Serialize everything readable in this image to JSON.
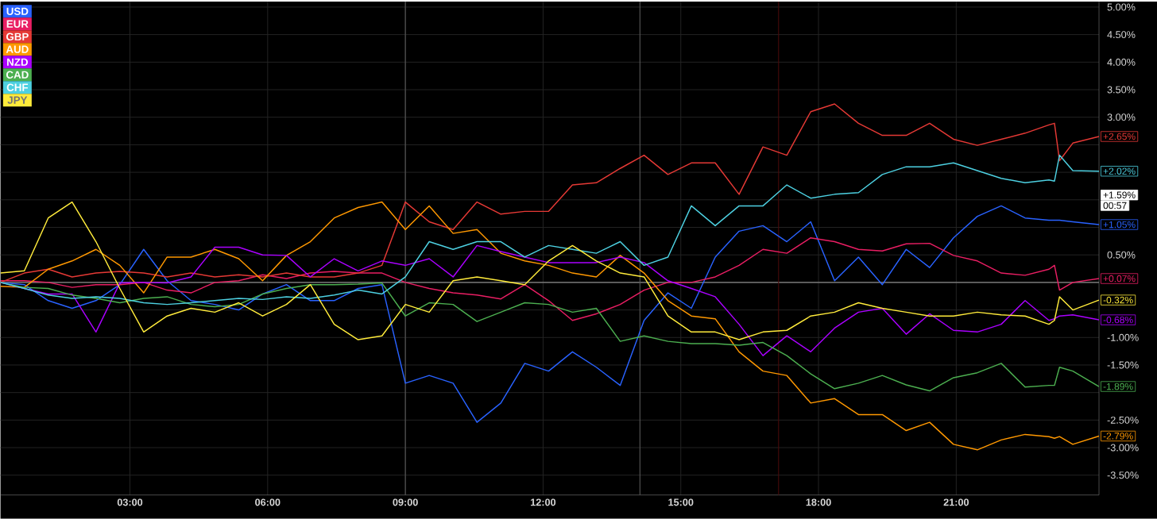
{
  "chart_data": {
    "type": "line",
    "x": [
      0.18,
      0.7,
      1.22,
      1.74,
      2.26,
      2.78,
      3.3,
      3.81,
      4.33,
      4.85,
      5.37,
      5.89,
      6.41,
      6.93,
      7.45,
      7.97,
      8.49,
      9.0,
      9.52,
      10.04,
      10.56,
      11.08,
      11.6,
      12.12,
      12.64,
      13.16,
      13.68,
      14.2,
      14.72,
      15.23,
      15.75,
      16.27,
      16.79,
      17.31,
      17.83,
      18.35,
      18.87,
      19.39,
      19.91,
      20.42,
      20.94,
      21.46,
      21.98,
      22.5,
      23.02,
      23.14,
      23.25,
      23.54,
      24.11
    ],
    "series": [
      {
        "name": "USD",
        "color": "#2962ff",
        "values": [
          0.0,
          -0.04,
          -0.33,
          -0.47,
          -0.33,
          -0.04,
          0.6,
          0.03,
          -0.33,
          -0.4,
          -0.5,
          -0.21,
          -0.04,
          -0.33,
          -0.33,
          -0.11,
          -0.04,
          -1.83,
          -1.69,
          -1.83,
          -2.54,
          -2.19,
          -1.47,
          -1.61,
          -1.26,
          -1.54,
          -1.87,
          -0.69,
          -0.19,
          -0.47,
          0.46,
          0.93,
          1.03,
          0.74,
          1.1,
          0.03,
          0.46,
          -0.04,
          0.6,
          0.27,
          0.81,
          1.2,
          1.39,
          1.17,
          1.13,
          1.13,
          1.13,
          1.1,
          1.05
        ],
        "value_labels": [
          null,
          null,
          null,
          null,
          null,
          null,
          null,
          null,
          null,
          null,
          null,
          null,
          null,
          null,
          null,
          null,
          null,
          null,
          null,
          null,
          null,
          null,
          null,
          null,
          null,
          null,
          null,
          null,
          null,
          null,
          null,
          null,
          null,
          null,
          null,
          null,
          null,
          null,
          null,
          null,
          null,
          null,
          null,
          null,
          null,
          null,
          null,
          null,
          "+1.05%"
        ]
      },
      {
        "name": "EUR",
        "color": "#e91e63",
        "values": [
          0.03,
          0.03,
          0.0,
          -0.09,
          -0.04,
          -0.04,
          0.0,
          -0.14,
          -0.19,
          0.0,
          0.03,
          0.14,
          0.07,
          0.17,
          0.2,
          0.17,
          0.17,
          0.0,
          -0.11,
          -0.19,
          -0.23,
          -0.3,
          -0.04,
          -0.33,
          -0.69,
          -0.57,
          -0.4,
          -0.14,
          0.0,
          0.0,
          0.1,
          0.31,
          0.6,
          0.53,
          0.81,
          0.74,
          0.6,
          0.57,
          0.7,
          0.71,
          0.49,
          0.39,
          0.17,
          0.13,
          0.24,
          0.31,
          -0.14,
          0.0,
          0.07
        ],
        "value_labels": [
          null,
          null,
          null,
          null,
          null,
          null,
          null,
          null,
          null,
          null,
          null,
          null,
          null,
          null,
          null,
          null,
          null,
          null,
          null,
          null,
          null,
          null,
          null,
          null,
          null,
          null,
          null,
          null,
          null,
          null,
          null,
          null,
          null,
          null,
          null,
          null,
          null,
          null,
          null,
          null,
          null,
          null,
          null,
          null,
          null,
          null,
          null,
          null,
          "+0.07%"
        ]
      },
      {
        "name": "GBP",
        "color": "#e53935",
        "values": [
          0.0,
          0.17,
          0.24,
          0.1,
          0.17,
          0.2,
          0.17,
          0.1,
          0.17,
          0.1,
          0.14,
          0.1,
          0.17,
          0.1,
          0.1,
          0.17,
          0.31,
          1.46,
          1.1,
          0.96,
          1.46,
          1.24,
          1.29,
          1.29,
          1.77,
          1.81,
          2.07,
          2.31,
          1.96,
          2.17,
          2.17,
          1.6,
          2.46,
          2.31,
          3.1,
          3.24,
          2.89,
          2.67,
          2.67,
          2.89,
          2.6,
          2.49,
          2.6,
          2.71,
          2.86,
          2.89,
          2.21,
          2.53,
          2.65
        ],
        "value_labels": [
          null,
          null,
          null,
          null,
          null,
          null,
          null,
          null,
          null,
          null,
          null,
          null,
          null,
          null,
          null,
          null,
          null,
          null,
          null,
          null,
          null,
          null,
          null,
          null,
          null,
          null,
          null,
          null,
          null,
          null,
          null,
          null,
          null,
          null,
          null,
          null,
          null,
          null,
          null,
          null,
          null,
          null,
          null,
          null,
          null,
          null,
          null,
          null,
          "+2.65%"
        ]
      },
      {
        "name": "AUD",
        "color": "#ff9800",
        "values": [
          -0.07,
          -0.09,
          0.24,
          0.39,
          0.6,
          0.31,
          -0.19,
          0.46,
          0.46,
          0.6,
          0.43,
          0.03,
          0.49,
          0.74,
          1.17,
          1.36,
          1.46,
          0.96,
          1.39,
          0.89,
          0.96,
          0.53,
          0.39,
          0.31,
          0.17,
          0.1,
          0.49,
          0.17,
          -0.33,
          -0.61,
          -0.66,
          -1.26,
          -1.61,
          -1.69,
          -2.19,
          -2.11,
          -2.4,
          -2.4,
          -2.69,
          -2.54,
          -2.94,
          -3.04,
          -2.86,
          -2.76,
          -2.8,
          -2.83,
          -2.8,
          -2.94,
          -2.79
        ],
        "value_labels": [
          null,
          null,
          null,
          null,
          null,
          null,
          null,
          null,
          null,
          null,
          null,
          null,
          null,
          null,
          null,
          null,
          null,
          null,
          null,
          null,
          null,
          null,
          null,
          null,
          null,
          null,
          null,
          null,
          null,
          null,
          null,
          null,
          null,
          null,
          null,
          null,
          null,
          null,
          null,
          null,
          null,
          null,
          null,
          null,
          null,
          null,
          null,
          null,
          "-2.79%"
        ]
      },
      {
        "name": "NZD",
        "color": "#aa00ff",
        "values": [
          0.0,
          -0.11,
          -0.21,
          -0.21,
          -0.9,
          -0.01,
          0.0,
          -0.01,
          0.1,
          0.64,
          0.64,
          0.5,
          0.49,
          0.1,
          0.43,
          0.21,
          0.39,
          0.31,
          0.43,
          0.1,
          0.67,
          0.56,
          0.46,
          0.36,
          0.36,
          0.36,
          0.46,
          0.36,
          0.03,
          -0.11,
          -0.26,
          -0.76,
          -1.33,
          -0.97,
          -1.26,
          -0.83,
          -0.54,
          -0.47,
          -0.94,
          -0.57,
          -0.87,
          -0.9,
          -0.76,
          -0.33,
          -0.69,
          -0.66,
          -0.61,
          -0.59,
          -0.68
        ],
        "value_labels": [
          null,
          null,
          null,
          null,
          null,
          null,
          null,
          null,
          null,
          null,
          null,
          null,
          null,
          null,
          null,
          null,
          null,
          null,
          null,
          null,
          null,
          null,
          null,
          null,
          null,
          null,
          null,
          null,
          null,
          null,
          null,
          null,
          null,
          null,
          null,
          null,
          null,
          null,
          null,
          null,
          null,
          null,
          null,
          null,
          null,
          null,
          null,
          null,
          "-0.68%"
        ]
      },
      {
        "name": "CAD",
        "color": "#4caf50",
        "values": [
          0.0,
          -0.09,
          -0.11,
          -0.23,
          -0.29,
          -0.37,
          -0.29,
          -0.26,
          -0.4,
          -0.44,
          -0.4,
          -0.21,
          -0.11,
          -0.04,
          -0.04,
          -0.03,
          -0.01,
          -0.61,
          -0.37,
          -0.4,
          -0.71,
          -0.54,
          -0.37,
          -0.4,
          -0.54,
          -0.47,
          -1.07,
          -0.97,
          -1.07,
          -1.11,
          -1.11,
          -1.14,
          -1.09,
          -1.33,
          -1.66,
          -1.93,
          -1.83,
          -1.69,
          -1.86,
          -1.97,
          -1.73,
          -1.64,
          -1.47,
          -1.9,
          -1.87,
          -1.87,
          -1.54,
          -1.61,
          -1.89
        ],
        "value_labels": [
          null,
          null,
          null,
          null,
          null,
          null,
          null,
          null,
          null,
          null,
          null,
          null,
          null,
          null,
          null,
          null,
          null,
          null,
          null,
          null,
          null,
          null,
          null,
          null,
          null,
          null,
          null,
          null,
          null,
          null,
          null,
          null,
          null,
          null,
          null,
          null,
          null,
          null,
          null,
          null,
          null,
          null,
          null,
          null,
          null,
          null,
          null,
          null,
          "-1.89%"
        ]
      },
      {
        "name": "CHF",
        "color": "#4dd0e1",
        "values": [
          0.0,
          -0.11,
          -0.23,
          -0.29,
          -0.26,
          -0.29,
          -0.37,
          -0.4,
          -0.37,
          -0.33,
          -0.29,
          -0.31,
          -0.26,
          -0.29,
          -0.23,
          -0.14,
          -0.21,
          0.1,
          0.74,
          0.6,
          0.74,
          0.74,
          0.46,
          0.67,
          0.6,
          0.53,
          0.74,
          0.31,
          0.46,
          1.39,
          1.03,
          1.39,
          1.39,
          1.77,
          1.53,
          1.6,
          1.63,
          1.96,
          2.1,
          2.1,
          2.17,
          2.03,
          1.89,
          1.81,
          1.86,
          1.84,
          2.31,
          2.03,
          2.02
        ],
        "value_labels": [
          null,
          null,
          null,
          null,
          null,
          null,
          null,
          null,
          null,
          null,
          null,
          null,
          null,
          null,
          null,
          null,
          null,
          null,
          null,
          null,
          null,
          null,
          null,
          null,
          null,
          null,
          null,
          null,
          null,
          null,
          null,
          null,
          null,
          null,
          null,
          null,
          null,
          null,
          null,
          null,
          null,
          null,
          null,
          null,
          null,
          null,
          null,
          null,
          "+2.02%"
        ]
      },
      {
        "name": "JPY",
        "color": "#ffeb3b",
        "values": [
          0.17,
          0.21,
          1.17,
          1.46,
          0.74,
          -0.11,
          -0.9,
          -0.61,
          -0.47,
          -0.54,
          -0.37,
          -0.61,
          -0.4,
          -0.04,
          -0.76,
          -1.04,
          -0.97,
          -0.4,
          -0.54,
          0.03,
          0.1,
          0.03,
          -0.04,
          0.39,
          0.67,
          0.39,
          0.17,
          0.1,
          -0.61,
          -0.9,
          -0.9,
          -1.04,
          -0.9,
          -0.87,
          -0.61,
          -0.54,
          -0.37,
          -0.47,
          -0.54,
          -0.61,
          -0.61,
          -0.54,
          -0.59,
          -0.61,
          -0.76,
          -0.69,
          -0.26,
          -0.5,
          -0.32
        ],
        "value_labels": [
          null,
          null,
          null,
          null,
          null,
          null,
          null,
          null,
          null,
          null,
          null,
          null,
          null,
          null,
          null,
          null,
          null,
          null,
          null,
          null,
          null,
          null,
          null,
          null,
          null,
          null,
          null,
          null,
          null,
          null,
          null,
          null,
          null,
          null,
          null,
          null,
          null,
          null,
          null,
          null,
          null,
          null,
          null,
          null,
          null,
          null,
          null,
          null,
          "-0.32%"
        ]
      }
    ],
    "xlim": [
      0.18,
      24.11
    ],
    "ylim": [
      -3.86,
      5.1
    ],
    "xticks": [
      {
        "value": 3,
        "label": "03:00"
      },
      {
        "value": 6,
        "label": "06:00"
      },
      {
        "value": 9,
        "label": "09:00"
      },
      {
        "value": 12,
        "label": "12:00"
      },
      {
        "value": 15,
        "label": "15:00"
      },
      {
        "value": 18,
        "label": "18:00"
      },
      {
        "value": 21,
        "label": "21:00"
      }
    ],
    "yticks": [
      {
        "value": 5,
        "label": "5.00%"
      },
      {
        "value": 4.5,
        "label": "4.50%"
      },
      {
        "value": 4,
        "label": "4.00%"
      },
      {
        "value": 3.5,
        "label": "3.50%"
      },
      {
        "value": 3,
        "label": "3.00%"
      },
      {
        "value": 2.5,
        "label": null
      },
      {
        "value": 2,
        "label": null
      },
      {
        "value": 1.5,
        "label": null
      },
      {
        "value": 1,
        "label": null
      },
      {
        "value": 0.5,
        "label": "0.50%"
      },
      {
        "value": 0,
        "label": null
      },
      {
        "value": -0.5,
        "label": null
      },
      {
        "value": -1,
        "label": "-1.00%"
      },
      {
        "value": -1.5,
        "label": "-1.50%"
      },
      {
        "value": -2,
        "label": null
      },
      {
        "value": -2.5,
        "label": "-2.50%"
      },
      {
        "value": -3,
        "label": "-3.00%"
      },
      {
        "value": -3.5,
        "label": "-3.50%"
      }
    ],
    "grid": true,
    "legend": "top left",
    "ref_lines": [
      {
        "axis": "y",
        "value": 0,
        "color": "#8a8a8a"
      },
      {
        "axis": "x",
        "value": 9.0,
        "color": "#5a5a5a"
      },
      {
        "axis": "x",
        "value": 14.11,
        "color": "#5a5a5a"
      },
      {
        "axis": "x",
        "value": 17.13,
        "color": "#4a0a0a"
      }
    ],
    "annotations": [
      "+1.59%",
      "00:57"
    ]
  }
}
